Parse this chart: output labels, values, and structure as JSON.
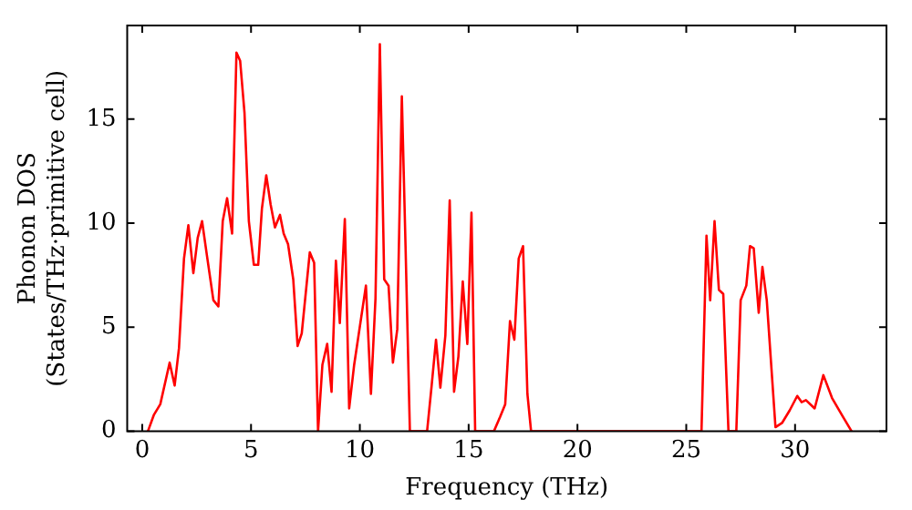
{
  "chart_data": {
    "type": "line",
    "xlabel": "Frequency (THz)",
    "ylabel": "Phonon DOS\n(States/THz·primitive cell)",
    "x": [
      0.26,
      0.54,
      0.83,
      1.26,
      1.49,
      1.69,
      1.92,
      2.12,
      2.35,
      2.55,
      2.75,
      2.98,
      3.27,
      3.5,
      3.7,
      3.9,
      4.13,
      4.33,
      4.5,
      4.7,
      4.9,
      5.13,
      5.33,
      5.5,
      5.7,
      5.9,
      6.1,
      6.33,
      6.5,
      6.7,
      6.94,
      7.14,
      7.33,
      7.7,
      7.9,
      8.08,
      8.28,
      8.5,
      8.7,
      8.9,
      9.08,
      9.31,
      9.51,
      9.74,
      10.28,
      10.51,
      10.72,
      10.92,
      11.12,
      11.32,
      11.52,
      11.72,
      11.93,
      12.1,
      12.3,
      13.09,
      13.3,
      13.5,
      13.7,
      13.93,
      14.13,
      14.33,
      14.53,
      14.73,
      14.94,
      15.13,
      15.3,
      16.16,
      16.45,
      16.68,
      16.9,
      17.1,
      17.3,
      17.5,
      17.7,
      17.87,
      25.7,
      25.93,
      26.1,
      26.3,
      26.5,
      26.7,
      26.94,
      27.3,
      27.5,
      27.76,
      27.93,
      28.1,
      28.33,
      28.5,
      28.7,
      29.1,
      29.4,
      29.75,
      30.1,
      30.3,
      30.5,
      30.9,
      31.3,
      31.7,
      32.2,
      32.6
    ],
    "series": [
      {
        "color": "#ff0000",
        "values": [
          0,
          0.8,
          1.3,
          3.3,
          2.2,
          4.0,
          8.3,
          9.9,
          7.6,
          9.3,
          10.1,
          8.4,
          6.3,
          6.0,
          10.1,
          11.2,
          9.5,
          18.2,
          17.8,
          15.3,
          10.1,
          8.0,
          8.0,
          10.7,
          12.3,
          10.9,
          9.8,
          10.4,
          9.5,
          9.0,
          7.3,
          4.1,
          4.7,
          8.6,
          8.1,
          0,
          3.2,
          4.2,
          1.9,
          8.2,
          5.2,
          10.2,
          1.1,
          3.2,
          7.0,
          1.8,
          6.4,
          18.6,
          7.3,
          7.0,
          3.3,
          4.9,
          16.1,
          8.9,
          0,
          0,
          2.2,
          4.4,
          2.1,
          4.6,
          11.1,
          1.9,
          3.6,
          7.2,
          4.2,
          10.5,
          0,
          0,
          0.7,
          1.3,
          5.3,
          4.4,
          8.3,
          8.9,
          1.8,
          0,
          0,
          9.4,
          6.3,
          10.1,
          6.8,
          6.6,
          0,
          0,
          6.3,
          7.0,
          8.9,
          8.8,
          5.7,
          7.9,
          6.3,
          0.2,
          0.4,
          1.0,
          1.7,
          1.4,
          1.5,
          1.1,
          2.7,
          1.6,
          0.7,
          0
        ]
      }
    ],
    "xlim": [
      -0.69,
      34.2
    ],
    "xticks": [
      0,
      5,
      10,
      15,
      20,
      25,
      30
    ],
    "ylim": [
      0,
      19.5
    ],
    "yticks": [
      0,
      5,
      10,
      15
    ],
    "grid": false,
    "legend": false,
    "marker": "none",
    "line_style": "solid"
  }
}
